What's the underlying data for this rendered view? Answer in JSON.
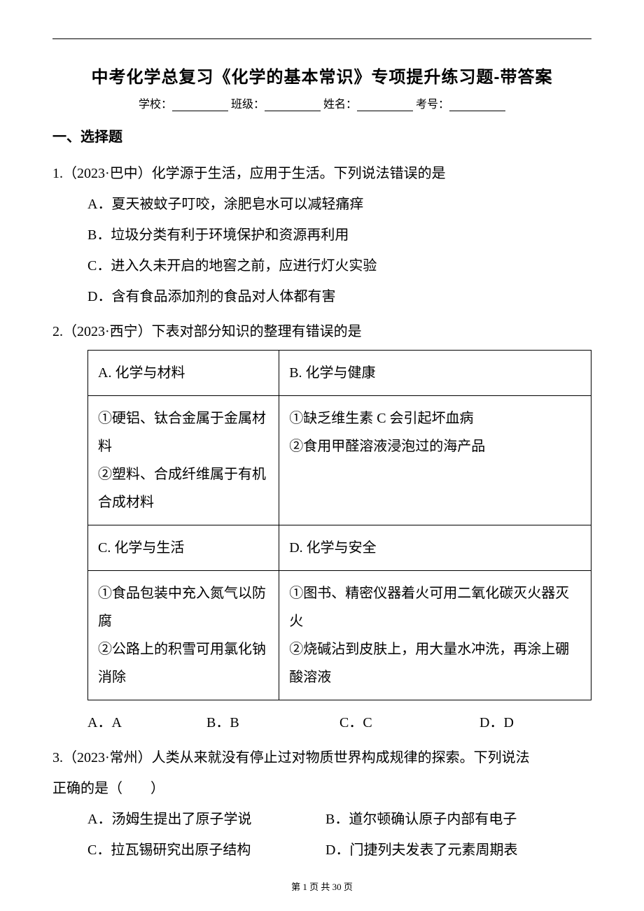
{
  "title": "中考化学总复习《化学的基本常识》专项提升练习题-带答案",
  "form": {
    "school_label": "学校：",
    "class_label": "班级：",
    "name_label": "姓名：",
    "exam_no_label": "考号："
  },
  "section1_heading": "一、选择题",
  "q1": {
    "stem": "1.（2023·巴中）化学源于生活，应用于生活。下列说法错误的是",
    "a": "A．夏天被蚊子叮咬，涂肥皂水可以减轻痛痒",
    "b": "B．垃圾分类有利于环境保护和资源再利用",
    "c": "C．进入久未开启的地窖之前，应进行灯火实验",
    "d": "D．含有食品添加剂的食品对人体都有害"
  },
  "q2": {
    "stem": "2.（2023·西宁）下表对部分知识的整理有错误的是",
    "table": {
      "r1c1": "A. 化学与材料",
      "r1c2": "B. 化学与健康",
      "r2c1": "①硬铝、钛合金属于金属材料\n②塑料、合成纤维属于有机合成材料",
      "r2c2": "①缺乏维生素 C 会引起坏血病\n②食用甲醛溶液浸泡过的海产品",
      "r3c1": "C. 化学与生活",
      "r3c2": "D. 化学与安全",
      "r4c1": "①食品包装中充入氮气以防腐\n②公路上的积雪可用氯化钠消除",
      "r4c2": "①图书、精密仪器着火可用二氧化碳灭火器灭火\n②烧碱沾到皮肤上，用大量水冲洗，再涂上硼酸溶液"
    },
    "options": {
      "a": "A．A",
      "b": "B．B",
      "c": "C．C",
      "d": "D．D"
    }
  },
  "q3": {
    "stem_line1": "3.（2023·常州）人类从来就没有停止过对物质世界构成规律的探索。下列说法",
    "stem_line2": "正确的是（　　）",
    "a": "A．汤姆生提出了原子学说",
    "b": "B．道尔顿确认原子内部有电子",
    "c": "C．拉瓦锡研究出原子结构",
    "d": "D．门捷列夫发表了元素周期表"
  },
  "footer": {
    "prefix": "第 ",
    "page": "1",
    "middle": " 页 共 ",
    "total": "30",
    "suffix": " 页"
  }
}
